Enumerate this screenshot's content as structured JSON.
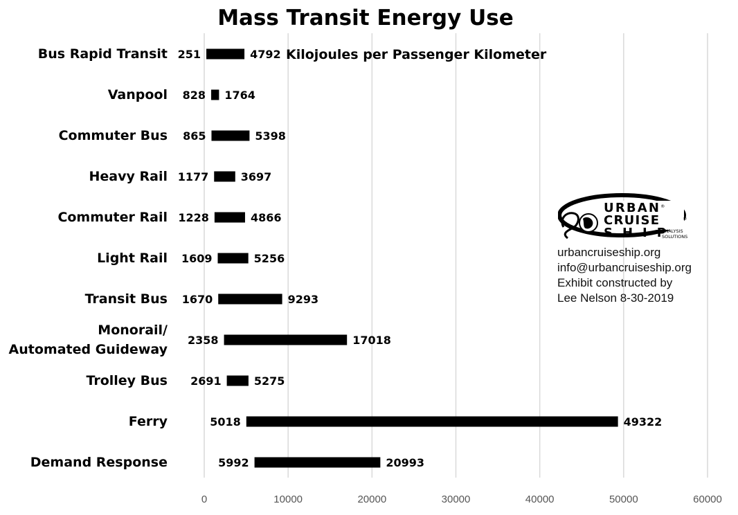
{
  "chart_data": {
    "type": "bar",
    "orientation": "horizontal",
    "variant": "floating-range",
    "title": "Mass Transit Energy Use",
    "unit_annotation": "Kilojoules per Passenger Kilometer",
    "categories": [
      [
        "Bus Rapid Transit"
      ],
      [
        "Vanpool"
      ],
      [
        "Commuter Bus"
      ],
      [
        "Heavy Rail"
      ],
      [
        "Commuter Rail"
      ],
      [
        "Light Rail"
      ],
      [
        "Transit Bus"
      ],
      [
        "Monorail/",
        "Automated Guideway"
      ],
      [
        "Trolley Bus"
      ],
      [
        "Ferry"
      ],
      [
        "Demand Response"
      ]
    ],
    "low": [
      251,
      828,
      865,
      1177,
      1228,
      1609,
      1670,
      2358,
      2691,
      5018,
      5992
    ],
    "high": [
      4792,
      1764,
      5398,
      3697,
      4866,
      5256,
      9293,
      17018,
      5275,
      49322,
      20993
    ],
    "low_labels": [
      "251",
      "828",
      "865",
      "1177",
      "1228",
      "1609",
      "1670",
      "2358",
      "2691",
      "5018",
      "5992"
    ],
    "high_labels": [
      "4792",
      "1764",
      "5398",
      "3697",
      "4866",
      "5256",
      "9293",
      "17018",
      "5275",
      "49322",
      "20993"
    ],
    "xlim": [
      0,
      60000
    ],
    "xticks": [
      0,
      10000,
      20000,
      30000,
      40000,
      50000,
      60000
    ],
    "xtick_labels": [
      "0",
      "10000",
      "20000",
      "30000",
      "40000",
      "50000",
      "60000"
    ],
    "grid": "vertical",
    "bar_color": "#000000",
    "grid_color": "#d9d9d9"
  },
  "logo": {
    "line1": "URBAN",
    "line2": "CRUISE",
    "line3": "SHIP",
    "tagline1": "ANALYSIS",
    "tagline2": "SOLUTIONS",
    "reg_mark": "®"
  },
  "info": {
    "website": "urbancruiseship.org",
    "email": "info@urbancruiseship.org",
    "credit1": "Exhibit constructed by",
    "credit2": "Lee Nelson 8-30-2019"
  }
}
